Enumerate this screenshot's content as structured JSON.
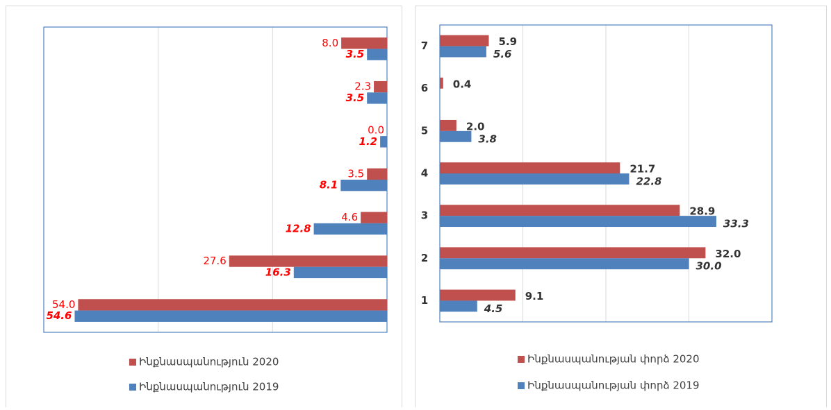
{
  "chart_data": [
    {
      "type": "hbar",
      "xreverse": true,
      "categories": [
        null,
        null,
        null,
        null,
        null,
        null,
        null
      ],
      "xlim": [
        0,
        60
      ],
      "xticks": [
        0,
        20,
        40,
        60
      ],
      "grid": true,
      "series": [
        {
          "name": "Ինքնասպանություն 2020",
          "color": "#c0504d",
          "label_color": "#ff0000",
          "label_style": "normal",
          "values": [
            54.0,
            27.6,
            4.6,
            3.5,
            0.0,
            2.3,
            8.0
          ],
          "value_labels": [
            "54.0",
            "27.6",
            "4.6",
            "3.5",
            "0.0",
            "2.3",
            "8.0"
          ]
        },
        {
          "name": "Ինքնասպանություն 2019",
          "color": "#4f81bd",
          "label_color": "#ff0000",
          "label_style": "bolditalic",
          "values": [
            54.6,
            16.3,
            12.8,
            8.1,
            1.2,
            3.5,
            3.5
          ],
          "value_labels": [
            "54.6",
            "16.3",
            "12.8",
            "8.1",
            "1.2",
            "3.5",
            "3.5"
          ]
        }
      ]
    },
    {
      "type": "hbar",
      "xreverse": false,
      "categories": [
        "1",
        "2",
        "3",
        "4",
        "5",
        "6",
        "7"
      ],
      "xlim": [
        0,
        40
      ],
      "xticks": [
        0,
        10,
        20,
        30,
        40
      ],
      "grid": true,
      "series": [
        {
          "name": "Ինքնասպանության փորձ 2020",
          "color": "#c0504d",
          "label_color": "#333333",
          "label_style": "bold",
          "values": [
            9.1,
            32.0,
            28.9,
            21.7,
            2.0,
            0.4,
            5.9
          ],
          "value_labels": [
            "9.1",
            "32.0",
            "28.9",
            "21.7",
            "2.0",
            "0.4",
            "5.9"
          ]
        },
        {
          "name": "Ինքնասպանության փորձ 2019",
          "color": "#4f81bd",
          "label_color": "#333333",
          "label_style": "bolditalic",
          "values": [
            4.5,
            30.0,
            33.3,
            22.8,
            3.8,
            null,
            5.6
          ],
          "value_labels": [
            "4.5",
            "30.0",
            "33.3",
            "22.8",
            "3.8",
            null,
            "5.6"
          ]
        }
      ]
    }
  ]
}
